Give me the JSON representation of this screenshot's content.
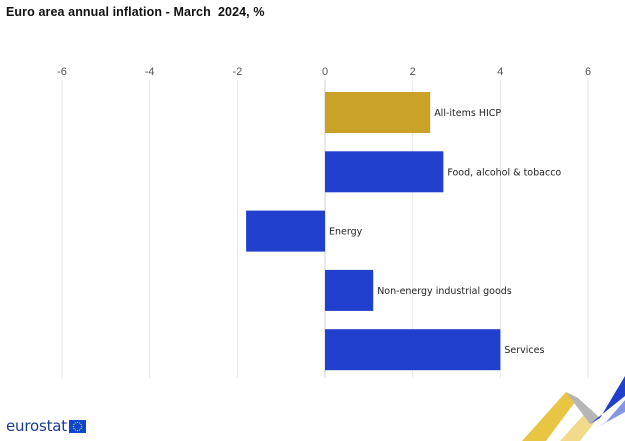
{
  "chart_data": {
    "type": "bar",
    "orientation": "horizontal",
    "title": "Euro area annual inflation - March  2024, %",
    "categories": [
      "All-items HICP",
      "Food, alcohol & tobacco",
      "Energy",
      "Non-energy industrial goods",
      "Services"
    ],
    "values": [
      2.4,
      2.7,
      -1.8,
      1.1,
      4.0
    ],
    "colors": [
      "#c9a227",
      "#1f3fcc",
      "#1f3fcc",
      "#1f3fcc",
      "#1f3fcc"
    ],
    "xlim": [
      -6,
      6
    ],
    "xticks": [
      "-6",
      "-4",
      "-2",
      "0",
      "2",
      "4",
      "6"
    ],
    "tick_values": [
      -6,
      -4,
      -2,
      0,
      2,
      4,
      6
    ],
    "axis_position": "top",
    "grid": true,
    "legend": "none"
  },
  "branding": {
    "logo_text": "eurostat"
  }
}
